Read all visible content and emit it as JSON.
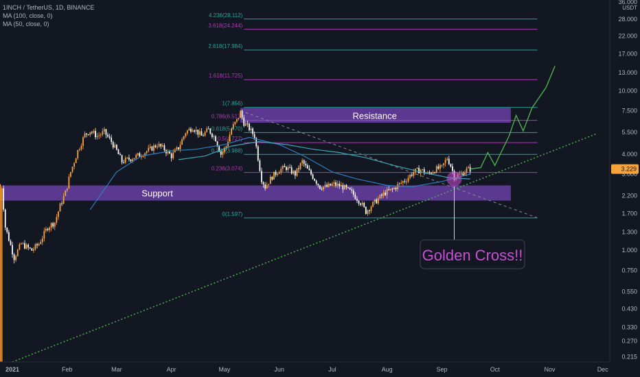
{
  "legend": {
    "title": "1INCH / TetherUS, 1D, BINANCE",
    "ma100": "MA (100, close, 0)",
    "ma50": "MA (50, close, 0)"
  },
  "colors": {
    "background": "#131722",
    "up_candle": "#f7a53a",
    "down_candle": "#ffffff",
    "zone": "#6a3fa3",
    "fib_teal": "#26a69a",
    "fib_purple": "#b03ab8",
    "ma50": "#2b7fc0",
    "ma100": "#3aa8b8",
    "projection": "#4caf50",
    "trendline": "#4caf50",
    "golden_text": "#c94fd6",
    "price_label": "#f7a53a"
  },
  "chart_data": {
    "type": "candlestick",
    "y_scale": "log",
    "ylim": [
      0.2,
      37.0
    ],
    "x_start": "2020-12-25",
    "x_end": "2021-12-05",
    "x_ticks": [
      {
        "date": "2021-01-01",
        "label": "2021"
      },
      {
        "date": "2021-02-01",
        "label": "Feb"
      },
      {
        "date": "2021-03-01",
        "label": "Mar"
      },
      {
        "date": "2021-04-01",
        "label": "Apr"
      },
      {
        "date": "2021-05-01",
        "label": "May"
      },
      {
        "date": "2021-06-01",
        "label": "Jun"
      },
      {
        "date": "2021-07-01",
        "label": "Jul"
      },
      {
        "date": "2021-08-01",
        "label": "Aug"
      },
      {
        "date": "2021-09-01",
        "label": "Sep"
      },
      {
        "date": "2021-10-01",
        "label": "Oct"
      },
      {
        "date": "2021-11-01",
        "label": "Nov"
      },
      {
        "date": "2021-12-01",
        "label": "Dec"
      }
    ],
    "y_ticks": [
      {
        "value": 36.0,
        "label": "36.000"
      },
      {
        "value": 28.0,
        "label": "28.000"
      },
      {
        "value": 22.0,
        "label": "22.000"
      },
      {
        "value": 17.0,
        "label": "17.000"
      },
      {
        "value": 13.0,
        "label": "13.000"
      },
      {
        "value": 10.0,
        "label": "10.000"
      },
      {
        "value": 7.5,
        "label": "7.500"
      },
      {
        "value": 5.5,
        "label": "5.500"
      },
      {
        "value": 4.0,
        "label": "4.000"
      },
      {
        "value": 3.0,
        "label": "3.000"
      },
      {
        "value": 2.2,
        "label": "2.200"
      },
      {
        "value": 1.7,
        "label": "1.700"
      },
      {
        "value": 1.3,
        "label": "1.300"
      },
      {
        "value": 1.0,
        "label": "1.000"
      },
      {
        "value": 0.75,
        "label": "0.750"
      },
      {
        "value": 0.55,
        "label": "0.550"
      },
      {
        "value": 0.43,
        "label": "0.430"
      },
      {
        "value": 0.33,
        "label": "0.330"
      },
      {
        "value": 0.27,
        "label": "0.270"
      },
      {
        "value": 0.215,
        "label": "0.215"
      }
    ],
    "y_unit": "USDT",
    "last_price": 3.229,
    "last_price_label": "3.229",
    "price_path": [
      [
        "2020-12-25",
        0.2
      ],
      [
        "2020-12-26",
        2.5
      ],
      [
        "2020-12-28",
        1.4
      ],
      [
        "2021-01-02",
        0.9
      ],
      [
        "2021-01-06",
        1.1
      ],
      [
        "2021-01-12",
        1.0
      ],
      [
        "2021-01-16",
        1.1
      ],
      [
        "2021-01-21",
        1.4
      ],
      [
        "2021-01-25",
        1.5
      ],
      [
        "2021-01-28",
        1.9
      ],
      [
        "2021-01-31",
        2.3
      ],
      [
        "2021-02-03",
        3.1
      ],
      [
        "2021-02-07",
        4.2
      ],
      [
        "2021-02-11",
        5.3
      ],
      [
        "2021-02-14",
        5.6
      ],
      [
        "2021-02-18",
        5.2
      ],
      [
        "2021-02-22",
        5.5
      ],
      [
        "2021-02-26",
        4.8
      ],
      [
        "2021-03-01",
        4.2
      ],
      [
        "2021-03-04",
        3.6
      ],
      [
        "2021-03-10",
        3.8
      ],
      [
        "2021-03-15",
        4.0
      ],
      [
        "2021-03-20",
        4.3
      ],
      [
        "2021-03-24",
        4.6
      ],
      [
        "2021-03-28",
        4.3
      ],
      [
        "2021-04-01",
        3.9
      ],
      [
        "2021-04-05",
        4.4
      ],
      [
        "2021-04-09",
        5.5
      ],
      [
        "2021-04-13",
        5.9
      ],
      [
        "2021-04-18",
        5.2
      ],
      [
        "2021-04-22",
        5.7
      ],
      [
        "2021-04-26",
        5.0
      ],
      [
        "2021-04-29",
        4.0
      ],
      [
        "2021-05-02",
        4.5
      ],
      [
        "2021-05-05",
        5.8
      ],
      [
        "2021-05-08",
        6.5
      ],
      [
        "2021-05-10",
        7.3
      ],
      [
        "2021-05-12",
        6.3
      ],
      [
        "2021-05-15",
        5.8
      ],
      [
        "2021-05-18",
        5.2
      ],
      [
        "2021-05-20",
        3.8
      ],
      [
        "2021-05-22",
        2.8
      ],
      [
        "2021-05-24",
        2.5
      ],
      [
        "2021-05-28",
        2.9
      ],
      [
        "2021-06-01",
        3.2
      ],
      [
        "2021-06-05",
        3.3
      ],
      [
        "2021-06-10",
        3.0
      ],
      [
        "2021-06-14",
        3.6
      ],
      [
        "2021-06-17",
        3.2
      ],
      [
        "2021-06-20",
        2.9
      ],
      [
        "2021-06-24",
        2.5
      ],
      [
        "2021-06-28",
        2.5
      ],
      [
        "2021-07-02",
        2.6
      ],
      [
        "2021-07-07",
        2.5
      ],
      [
        "2021-07-12",
        2.3
      ],
      [
        "2021-07-17",
        2.0
      ],
      [
        "2021-07-20",
        1.75
      ],
      [
        "2021-07-23",
        1.9
      ],
      [
        "2021-07-27",
        2.1
      ],
      [
        "2021-07-31",
        2.3
      ],
      [
        "2021-08-04",
        2.4
      ],
      [
        "2021-08-08",
        2.6
      ],
      [
        "2021-08-12",
        2.8
      ],
      [
        "2021-08-16",
        3.1
      ],
      [
        "2021-08-20",
        3.2
      ],
      [
        "2021-08-24",
        3.0
      ],
      [
        "2021-08-28",
        3.2
      ],
      [
        "2021-09-01",
        3.3
      ],
      [
        "2021-09-04",
        3.8
      ],
      [
        "2021-09-06",
        3.4
      ],
      [
        "2021-09-08",
        2.9
      ],
      [
        "2021-09-12",
        3.0
      ],
      [
        "2021-09-15",
        3.2
      ],
      [
        "2021-09-17",
        3.229
      ]
    ],
    "ma50_path": [
      [
        "2021-02-14",
        1.8
      ],
      [
        "2021-03-01",
        3.1
      ],
      [
        "2021-03-15",
        3.9
      ],
      [
        "2021-04-01",
        4.2
      ],
      [
        "2021-04-15",
        4.3
      ],
      [
        "2021-05-01",
        4.6
      ],
      [
        "2021-05-15",
        5.1
      ],
      [
        "2021-06-01",
        4.6
      ],
      [
        "2021-06-15",
        3.9
      ],
      [
        "2021-07-01",
        3.1
      ],
      [
        "2021-07-15",
        2.8
      ],
      [
        "2021-08-01",
        2.55
      ],
      [
        "2021-08-15",
        2.5
      ],
      [
        "2021-09-01",
        2.7
      ],
      [
        "2021-09-17",
        3.0
      ]
    ],
    "ma100_path": [
      [
        "2021-04-05",
        3.7
      ],
      [
        "2021-04-20",
        3.9
      ],
      [
        "2021-05-05",
        4.5
      ],
      [
        "2021-05-20",
        4.8
      ],
      [
        "2021-06-05",
        4.6
      ],
      [
        "2021-06-20",
        4.3
      ],
      [
        "2021-07-05",
        4.1
      ],
      [
        "2021-07-20",
        3.8
      ],
      [
        "2021-08-05",
        3.4
      ],
      [
        "2021-08-20",
        3.1
      ],
      [
        "2021-09-05",
        2.85
      ],
      [
        "2021-09-17",
        2.8
      ]
    ],
    "fib_levels": [
      {
        "label": "4.236(28.112)",
        "value": 28.112,
        "color": "teal"
      },
      {
        "label": "3.618(24.244)",
        "value": 24.244,
        "color": "purple"
      },
      {
        "label": "2.618(17.984)",
        "value": 17.984,
        "color": "teal"
      },
      {
        "label": "1.618(11.725)",
        "value": 11.725,
        "color": "purple"
      },
      {
        "label": "1(7.856)",
        "value": 7.856,
        "color": "teal"
      },
      {
        "label": "0.786(6.517)",
        "value": 6.517,
        "color": "purple"
      },
      {
        "label": "0.618(5.470)",
        "value": 5.47,
        "color": "teal"
      },
      {
        "label": "0.5(4.727)",
        "value": 4.727,
        "color": "purple"
      },
      {
        "label": "0.382(3.988)",
        "value": 3.988,
        "color": "teal"
      },
      {
        "label": "0.236(3.074)",
        "value": 3.074,
        "color": "purple"
      },
      {
        "label": "0(1.597)",
        "value": 1.597,
        "color": "teal"
      }
    ],
    "fib_start": "2021-05-12",
    "fib_end": "2021-10-25",
    "zones": [
      {
        "label": "Resistance",
        "y_low": 6.3,
        "y_high": 7.8,
        "x_start": "2021-05-10",
        "x_end": "2021-10-10"
      },
      {
        "label": "Support",
        "y_low": 2.05,
        "y_high": 2.55,
        "x_start": "2020-12-25",
        "x_end": "2021-10-10"
      }
    ],
    "trendline": [
      [
        "2021-01-01",
        0.2
      ],
      [
        "2021-11-28",
        5.4
      ]
    ],
    "downtrend_line": [
      [
        "2021-05-10",
        7.5
      ],
      [
        "2021-10-25",
        1.6
      ]
    ],
    "projection_path": [
      [
        "2021-09-17",
        3.229
      ],
      [
        "2021-09-23",
        3.3
      ],
      [
        "2021-09-27",
        4.1
      ],
      [
        "2021-10-01",
        3.4
      ],
      [
        "2021-10-04",
        4.0
      ],
      [
        "2021-10-09",
        5.2
      ],
      [
        "2021-10-13",
        7.0
      ],
      [
        "2021-10-17",
        5.6
      ],
      [
        "2021-10-22",
        7.8
      ],
      [
        "2021-10-30",
        10.5
      ],
      [
        "2021-11-04",
        14.3
      ]
    ],
    "golden_cross": {
      "label": "Golden Cross!!",
      "date": "2021-09-08",
      "value": 2.8
    }
  }
}
